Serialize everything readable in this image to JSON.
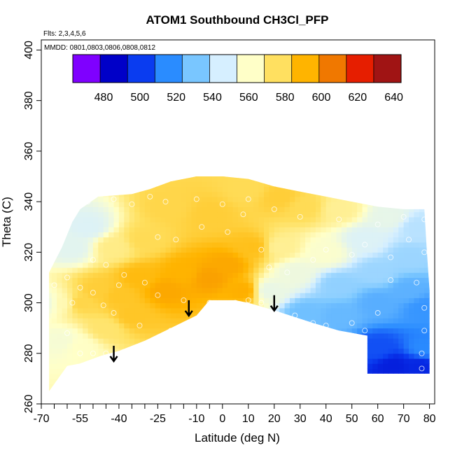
{
  "chart_data": {
    "type": "heatmap",
    "title": "ATOM1 Southbound CH3Cl_PFP",
    "flights_label": "Flts: 2,3,4,5,6",
    "dates_label": "MMDD: 0801,0803,0806,0808,0812",
    "xlabel": "Latitude (deg N)",
    "ylabel": "Theta (C)",
    "xlim": [
      -70,
      82
    ],
    "ylim": [
      260,
      404
    ],
    "x_tick_labels": [
      "-70",
      "-55",
      "-40",
      "-25",
      "-10",
      "0",
      "10",
      "20",
      "30",
      "40",
      "50",
      "60",
      "70",
      "80"
    ],
    "x_tick_values": [
      -70,
      -55,
      -40,
      -25,
      -10,
      0,
      10,
      20,
      30,
      40,
      50,
      60,
      70,
      80
    ],
    "x_minor_ticks": [
      -65,
      -60,
      -50,
      -45,
      -35,
      -30,
      -20,
      -15,
      -5
    ],
    "y_tick_labels": [
      "260",
      "280",
      "300",
      "320",
      "340",
      "360",
      "380",
      "400"
    ],
    "y_tick_values": [
      260,
      280,
      300,
      320,
      340,
      360,
      380,
      400
    ],
    "colorbar": {
      "range": [
        463,
        644
      ],
      "tick_labels": [
        "480",
        "500",
        "520",
        "540",
        "560",
        "580",
        "600",
        "620",
        "640"
      ],
      "tick_values": [
        480,
        500,
        520,
        540,
        560,
        580,
        600,
        620,
        640
      ],
      "colors": [
        "#7f00ff",
        "#0000c8",
        "#0a3cf0",
        "#2a8cff",
        "#79c6ff",
        "#d6efff",
        "#ffffc8",
        "#ffe060",
        "#ffb400",
        "#f07800",
        "#e61e00",
        "#a01414"
      ]
    },
    "arrows": [
      {
        "lat": -42,
        "theta": 283
      },
      {
        "lat": -13,
        "theta": 301
      },
      {
        "lat": 20,
        "theta": 303
      }
    ],
    "upper_boundary": [
      [
        -67,
        312
      ],
      [
        -62,
        322
      ],
      [
        -58,
        332
      ],
      [
        -55,
        337
      ],
      [
        -48,
        342
      ],
      [
        -35,
        343
      ],
      [
        -28,
        345
      ],
      [
        -20,
        348
      ],
      [
        -10,
        350
      ],
      [
        0,
        350
      ],
      [
        10,
        349
      ],
      [
        20,
        346
      ],
      [
        30,
        344
      ],
      [
        40,
        342
      ],
      [
        50,
        340
      ],
      [
        60,
        338
      ],
      [
        70,
        337
      ],
      [
        78,
        337
      ],
      [
        79,
        320
      ],
      [
        80,
        305
      ],
      [
        80,
        272
      ]
    ],
    "lower_boundary": [
      [
        80,
        272
      ],
      [
        56,
        272
      ],
      [
        56,
        287
      ],
      [
        45,
        289
      ],
      [
        35,
        292
      ],
      [
        20,
        297
      ],
      [
        10,
        300
      ],
      [
        5,
        301
      ],
      [
        -5,
        301
      ],
      [
        -10,
        295
      ],
      [
        -20,
        290
      ],
      [
        -30,
        285
      ],
      [
        -40,
        281
      ],
      [
        -47,
        279
      ],
      [
        -55,
        276
      ],
      [
        -60,
        275
      ],
      [
        -67,
        265
      ]
    ],
    "anchor_points": [
      {
        "lat": -68,
        "theta": 300,
        "value": 555
      },
      {
        "lat": -62,
        "theta": 300,
        "value": 565
      },
      {
        "lat": -55,
        "theta": 300,
        "value": 582
      },
      {
        "lat": -48,
        "theta": 305,
        "value": 585
      },
      {
        "lat": -40,
        "theta": 303,
        "value": 588
      },
      {
        "lat": -32,
        "theta": 310,
        "value": 592
      },
      {
        "lat": -22,
        "theta": 305,
        "value": 598
      },
      {
        "lat": -15,
        "theta": 312,
        "value": 595
      },
      {
        "lat": -5,
        "theta": 310,
        "value": 600
      },
      {
        "lat": 2,
        "theta": 315,
        "value": 598
      },
      {
        "lat": 8,
        "theta": 305,
        "value": 596
      },
      {
        "lat": 12,
        "theta": 322,
        "value": 590
      },
      {
        "lat": -5,
        "theta": 335,
        "value": 585
      },
      {
        "lat": -20,
        "theta": 338,
        "value": 582
      },
      {
        "lat": -30,
        "theta": 325,
        "value": 580
      },
      {
        "lat": -42,
        "theta": 322,
        "value": 572
      },
      {
        "lat": -52,
        "theta": 330,
        "value": 548
      },
      {
        "lat": -58,
        "theta": 322,
        "value": 550
      },
      {
        "lat": -62,
        "theta": 285,
        "value": 558
      },
      {
        "lat": -55,
        "theta": 283,
        "value": 562
      },
      {
        "lat": -45,
        "theta": 290,
        "value": 576
      },
      {
        "lat": -35,
        "theta": 295,
        "value": 588
      },
      {
        "lat": 10,
        "theta": 345,
        "value": 580
      },
      {
        "lat": 22,
        "theta": 342,
        "value": 585
      },
      {
        "lat": 32,
        "theta": 338,
        "value": 580
      },
      {
        "lat": 45,
        "theta": 337,
        "value": 570
      },
      {
        "lat": 22,
        "theta": 322,
        "value": 570
      },
      {
        "lat": 18,
        "theta": 305,
        "value": 553
      },
      {
        "lat": 28,
        "theta": 312,
        "value": 555
      },
      {
        "lat": 40,
        "theta": 320,
        "value": 560
      },
      {
        "lat": 55,
        "theta": 325,
        "value": 548
      },
      {
        "lat": 65,
        "theta": 334,
        "value": 552
      },
      {
        "lat": 75,
        "theta": 330,
        "value": 540
      },
      {
        "lat": 72,
        "theta": 318,
        "value": 535
      },
      {
        "lat": 60,
        "theta": 312,
        "value": 535
      },
      {
        "lat": 45,
        "theta": 307,
        "value": 533
      },
      {
        "lat": 32,
        "theta": 296,
        "value": 527
      },
      {
        "lat": 45,
        "theta": 295,
        "value": 525
      },
      {
        "lat": 60,
        "theta": 300,
        "value": 522
      },
      {
        "lat": 72,
        "theta": 305,
        "value": 523
      },
      {
        "lat": 78,
        "theta": 298,
        "value": 515
      },
      {
        "lat": 78,
        "theta": 282,
        "value": 512
      },
      {
        "lat": 60,
        "theta": 282,
        "value": 500
      },
      {
        "lat": 66,
        "theta": 275,
        "value": 488
      },
      {
        "lat": 76,
        "theta": 275,
        "value": 490
      }
    ],
    "samples": [
      [
        -52,
        340
      ],
      [
        -42,
        341
      ],
      [
        -35,
        339
      ],
      [
        -28,
        342
      ],
      [
        -22,
        340
      ],
      [
        -10,
        341
      ],
      [
        0,
        339
      ],
      [
        10,
        341
      ],
      [
        20,
        337
      ],
      [
        30,
        334
      ],
      [
        45,
        333
      ],
      [
        60,
        331
      ],
      [
        70,
        334
      ],
      [
        78,
        333
      ],
      [
        -50,
        317
      ],
      [
        -45,
        315
      ],
      [
        -38,
        311
      ],
      [
        -30,
        308
      ],
      [
        -25,
        303
      ],
      [
        -40,
        307
      ],
      [
        -55,
        306
      ],
      [
        -60,
        310
      ],
      [
        -58,
        300
      ],
      [
        -50,
        304
      ],
      [
        -46,
        299
      ],
      [
        -42,
        296
      ],
      [
        -32,
        291
      ],
      [
        -15,
        301
      ],
      [
        -5,
        300
      ],
      [
        0,
        299
      ],
      [
        5,
        300
      ],
      [
        10,
        301
      ],
      [
        -8,
        330
      ],
      [
        2,
        328
      ],
      [
        8,
        335
      ],
      [
        15,
        321
      ],
      [
        18,
        314
      ],
      [
        25,
        312
      ],
      [
        35,
        317
      ],
      [
        40,
        321
      ],
      [
        50,
        319
      ],
      [
        55,
        323
      ],
      [
        65,
        318
      ],
      [
        72,
        325
      ],
      [
        78,
        320
      ],
      [
        20,
        299
      ],
      [
        15,
        300
      ],
      [
        28,
        295
      ],
      [
        35,
        292
      ],
      [
        40,
        291
      ],
      [
        50,
        292
      ],
      [
        55,
        289
      ],
      [
        60,
        296
      ],
      [
        65,
        309
      ],
      [
        75,
        308
      ],
      [
        78,
        298
      ],
      [
        78,
        289
      ],
      [
        77,
        280
      ],
      [
        77,
        274
      ],
      [
        -65,
        307
      ],
      [
        -60,
        288
      ],
      [
        -55,
        280
      ],
      [
        -50,
        280
      ],
      [
        -45,
        280
      ],
      [
        -40,
        278
      ],
      [
        -20,
        289
      ],
      [
        -18,
        325
      ],
      [
        -25,
        326
      ]
    ]
  }
}
